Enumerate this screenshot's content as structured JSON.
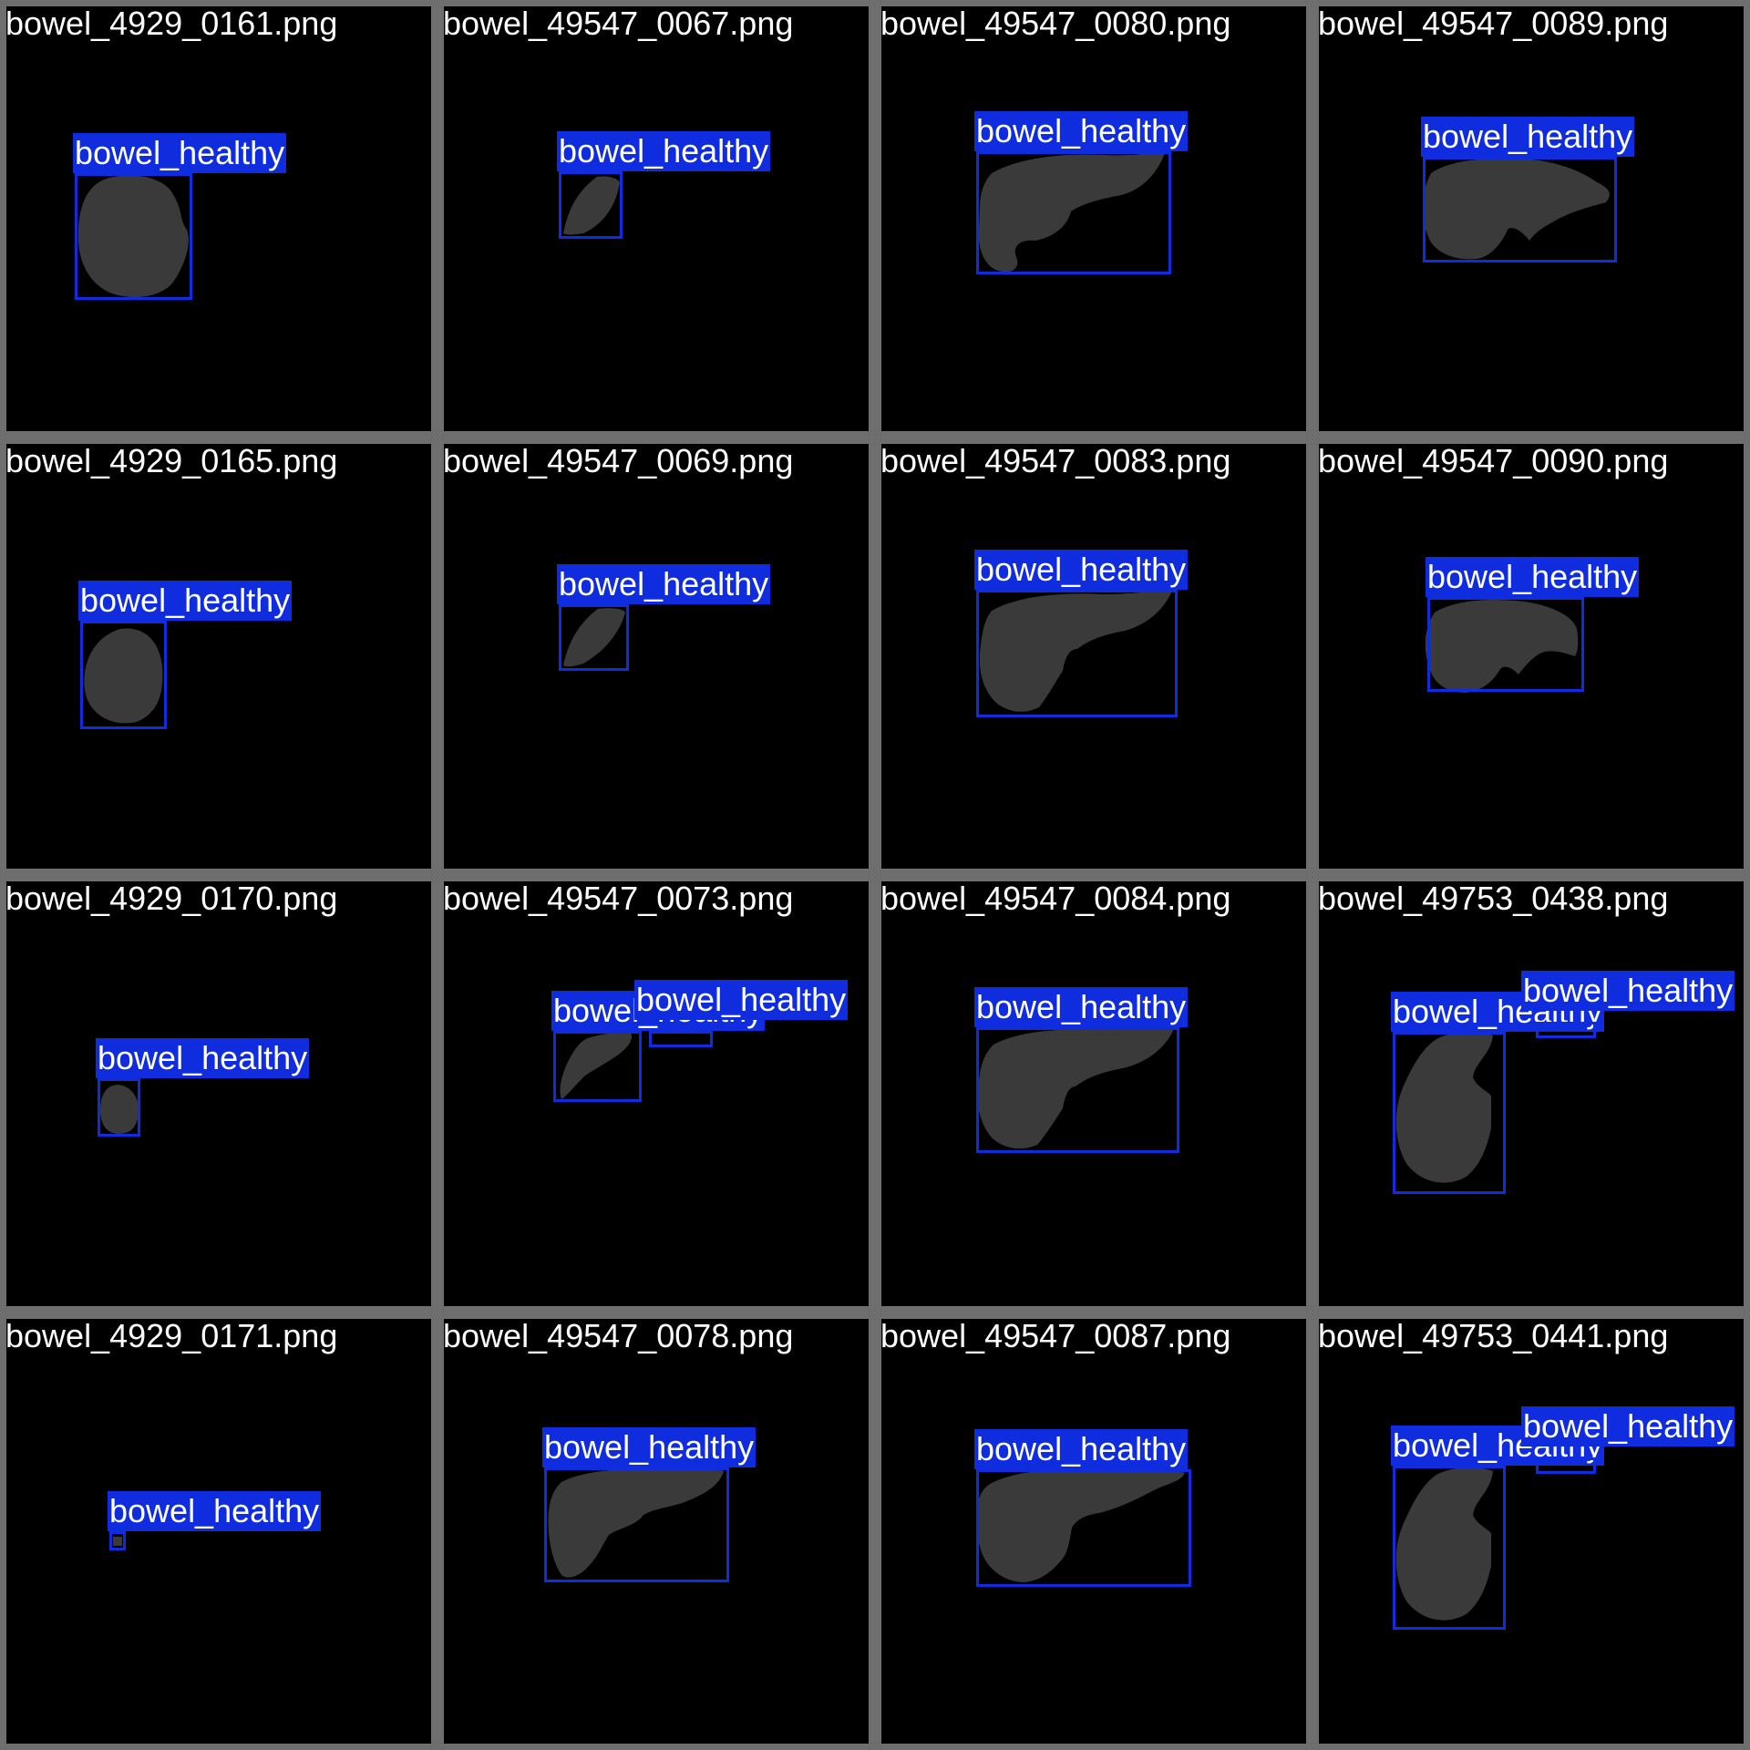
{
  "colors": {
    "outer_border": "#808080",
    "panel_bg": "#000000",
    "organ_fill": "#3a3a3a",
    "box_color": "#0f2ddf",
    "text_color": "#ffffff"
  },
  "tiles": [
    {
      "filename": "bowel_4929_0161.png",
      "detections": [
        {
          "label": "bowel_healthy"
        }
      ]
    },
    {
      "filename": "bowel_49547_0067.png",
      "detections": [
        {
          "label": "bowel_healthy"
        }
      ]
    },
    {
      "filename": "bowel_49547_0080.png",
      "detections": [
        {
          "label": "bowel_healthy"
        }
      ]
    },
    {
      "filename": "bowel_49547_0089.png",
      "detections": [
        {
          "label": "bowel_healthy"
        }
      ]
    },
    {
      "filename": "bowel_4929_0165.png",
      "detections": [
        {
          "label": "bowel_healthy"
        }
      ]
    },
    {
      "filename": "bowel_49547_0069.png",
      "detections": [
        {
          "label": "bowel_healthy"
        }
      ]
    },
    {
      "filename": "bowel_49547_0083.png",
      "detections": [
        {
          "label": "bowel_healthy"
        }
      ]
    },
    {
      "filename": "bowel_49547_0090.png",
      "detections": [
        {
          "label": "bowel_healthy"
        }
      ]
    },
    {
      "filename": "bowel_4929_0170.png",
      "detections": [
        {
          "label": "bowel_healthy"
        }
      ]
    },
    {
      "filename": "bowel_49547_0073.png",
      "detections": [
        {
          "label": "bowel_healthy"
        },
        {
          "label": "bowel_healthy"
        }
      ]
    },
    {
      "filename": "bowel_49547_0084.png",
      "detections": [
        {
          "label": "bowel_healthy"
        }
      ]
    },
    {
      "filename": "bowel_49753_0438.png",
      "detections": [
        {
          "label": "bowel_healthy"
        },
        {
          "label": "bowel_healthy"
        }
      ]
    },
    {
      "filename": "bowel_4929_0171.png",
      "detections": [
        {
          "label": "bowel_healthy"
        }
      ]
    },
    {
      "filename": "bowel_49547_0078.png",
      "detections": [
        {
          "label": "bowel_healthy"
        }
      ]
    },
    {
      "filename": "bowel_49547_0087.png",
      "detections": [
        {
          "label": "bowel_healthy"
        }
      ]
    },
    {
      "filename": "bowel_49753_0441.png",
      "detections": [
        {
          "label": "bowel_healthy"
        },
        {
          "label": "bowel_healthy"
        }
      ]
    }
  ]
}
